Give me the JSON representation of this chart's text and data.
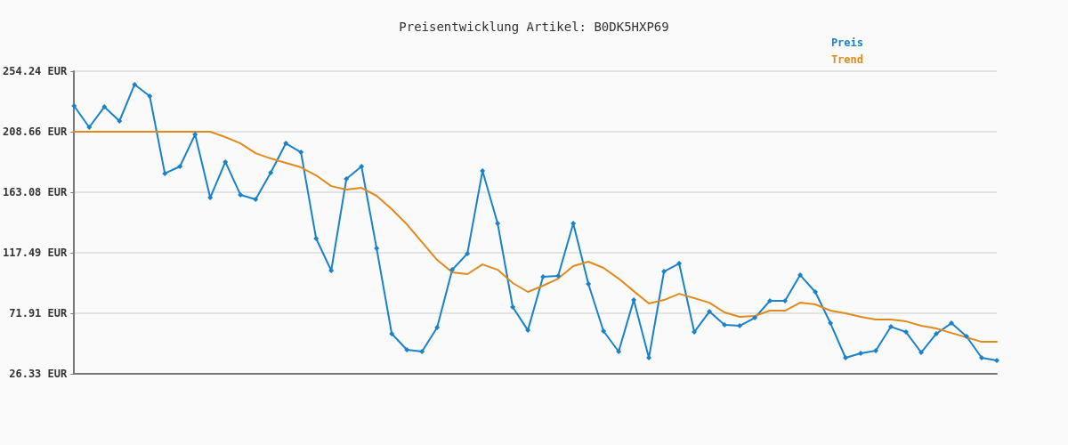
{
  "chart_data": {
    "type": "line",
    "title": "Preisentwicklung Artikel: B0DK5HXP69",
    "categories": [
      null,
      null,
      null,
      null,
      null,
      null,
      null,
      null,
      null,
      null,
      null,
      null,
      null,
      null,
      null,
      null,
      null,
      null,
      null,
      null,
      null,
      null,
      null,
      null,
      null,
      null,
      null,
      null,
      null,
      null,
      null,
      null,
      null,
      null,
      null,
      null,
      null,
      null,
      null,
      null,
      null,
      null,
      null,
      null,
      null,
      null,
      null,
      null,
      null,
      null,
      null,
      null,
      null,
      null,
      null,
      null,
      null,
      null,
      null,
      null,
      null,
      null
    ],
    "series": [
      {
        "name": "Preis",
        "color": "#1a82c8",
        "marker": "diamond",
        "values": [
          228.1,
          212.0,
          227.4,
          216.7,
          244.2,
          235.5,
          177.2,
          182.5,
          206.6,
          159.0,
          185.9,
          161.1,
          157.7,
          177.8,
          199.9,
          193.2,
          128.2,
          104.1,
          173.1,
          182.5,
          120.8,
          56.5,
          44.4,
          43.1,
          61.2,
          104.7,
          116.8,
          179.1,
          139.6,
          76.6,
          59.1,
          99.4,
          100.0,
          139.6,
          94.0,
          58.5,
          43.1,
          81.9,
          38.4,
          103.4,
          109.4,
          57.8,
          73.2,
          63.2,
          62.5,
          68.5,
          81.3,
          81.3,
          100.7,
          88.0,
          64.5,
          38.4,
          41.7,
          43.7,
          61.8,
          57.8,
          42.4,
          56.5,
          64.5,
          54.5,
          38.4,
          36.4
        ]
      },
      {
        "name": "Trend",
        "color": "#e08a1e",
        "marker": "none",
        "values": [
          208.7,
          208.7,
          208.7,
          208.7,
          208.7,
          208.7,
          208.7,
          208.7,
          208.7,
          208.7,
          204.6,
          199.9,
          192.5,
          188.5,
          185.2,
          181.8,
          175.8,
          167.7,
          165.1,
          166.4,
          160.4,
          150.3,
          138.9,
          125.5,
          112.1,
          102.7,
          101.4,
          108.7,
          104.7,
          94.7,
          88.0,
          92.7,
          98.0,
          107.4,
          110.8,
          106.1,
          98.0,
          88.6,
          79.3,
          81.9,
          86.6,
          83.3,
          79.9,
          72.6,
          69.2,
          69.9,
          73.9,
          73.9,
          79.9,
          78.6,
          73.9,
          71.9,
          69.2,
          67.2,
          67.2,
          65.8,
          62.5,
          60.5,
          57.1,
          53.8,
          50.4,
          50.4
        ]
      }
    ],
    "ylim": [
      26.33,
      254.24
    ],
    "yticks": [
      {
        "value": 26.33,
        "label": "26.33 EUR"
      },
      {
        "value": 71.91,
        "label": "71.91 EUR"
      },
      {
        "value": 117.49,
        "label": "117.49 EUR"
      },
      {
        "value": 163.08,
        "label": "163.08 EUR"
      },
      {
        "value": 208.66,
        "label": "208.66 EUR"
      },
      {
        "value": 254.24,
        "label": "254.24 EUR"
      }
    ],
    "grid": "y",
    "legend": "top right",
    "line_style": "solid"
  }
}
